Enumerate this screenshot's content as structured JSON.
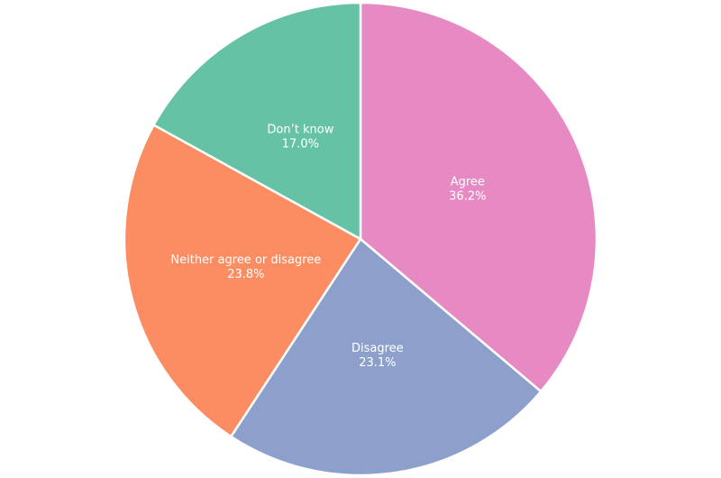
{
  "chart_data": {
    "type": "pie",
    "categories": [
      "Agree",
      "Disagree",
      "Neither agree or disagree",
      "Don’t know"
    ],
    "values": [
      36.2,
      23.1,
      23.8,
      17.0
    ],
    "value_labels": [
      "36.2%",
      "23.1%",
      "23.8%",
      "17.0%"
    ],
    "colors": [
      "#e78ac3",
      "#8da0cb",
      "#fc8d62",
      "#66c2a5"
    ]
  }
}
